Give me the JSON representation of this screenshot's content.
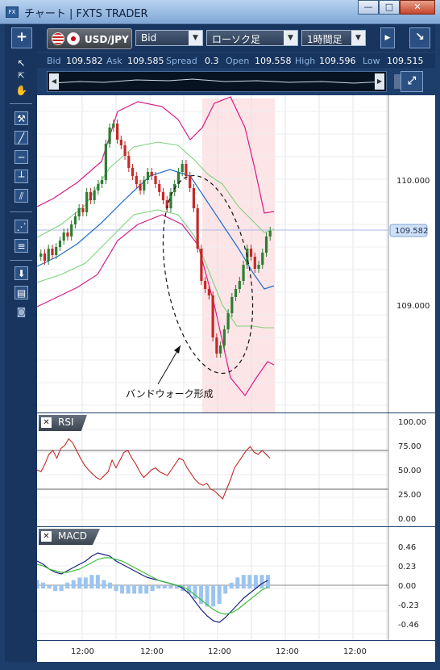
{
  "window": {
    "title": "チャート | FXTS TRADER",
    "minimize": "—",
    "maximize": "□",
    "close": "✕"
  },
  "toolbar": {
    "add_label": "+",
    "pair": "USD/JPY",
    "price_type": "Bid",
    "chart_type": "ローソク足",
    "timeframe": "1時間足",
    "expand_label": "↘"
  },
  "quotes": {
    "bid_label": "Bid",
    "bid": "109.582",
    "ask_label": "Ask",
    "ask": "109.585",
    "spread_label": "Spread",
    "spread": "0.3",
    "open_label": "Open",
    "open": "109.558",
    "high_label": "High",
    "high": "109.596",
    "low_label": "Low",
    "low": "109.515"
  },
  "main_chart": {
    "price_labels": [
      "110.000",
      "109.000"
    ],
    "current_price": "109.582",
    "annotation": "バンドウォーク形成"
  },
  "rsi": {
    "label": "RSI",
    "levels": [
      "100.00",
      "75.00",
      "50.00",
      "25.00",
      "0.00"
    ]
  },
  "macd": {
    "label": "MACD",
    "levels": [
      "0.46",
      "0.23",
      "0.00",
      "-0.23",
      "-0.46"
    ]
  },
  "time_axis": {
    "labels": [
      "12:00",
      "12:00",
      "12:00",
      "12:00",
      "12:00"
    ]
  },
  "colors": {
    "bull": "#2e7d32",
    "bear": "#c62828",
    "upper_band": "#d81b84",
    "ma": "#1e6fd0",
    "inner_band": "#7ed37e",
    "highlight": "#fde4e6"
  }
}
